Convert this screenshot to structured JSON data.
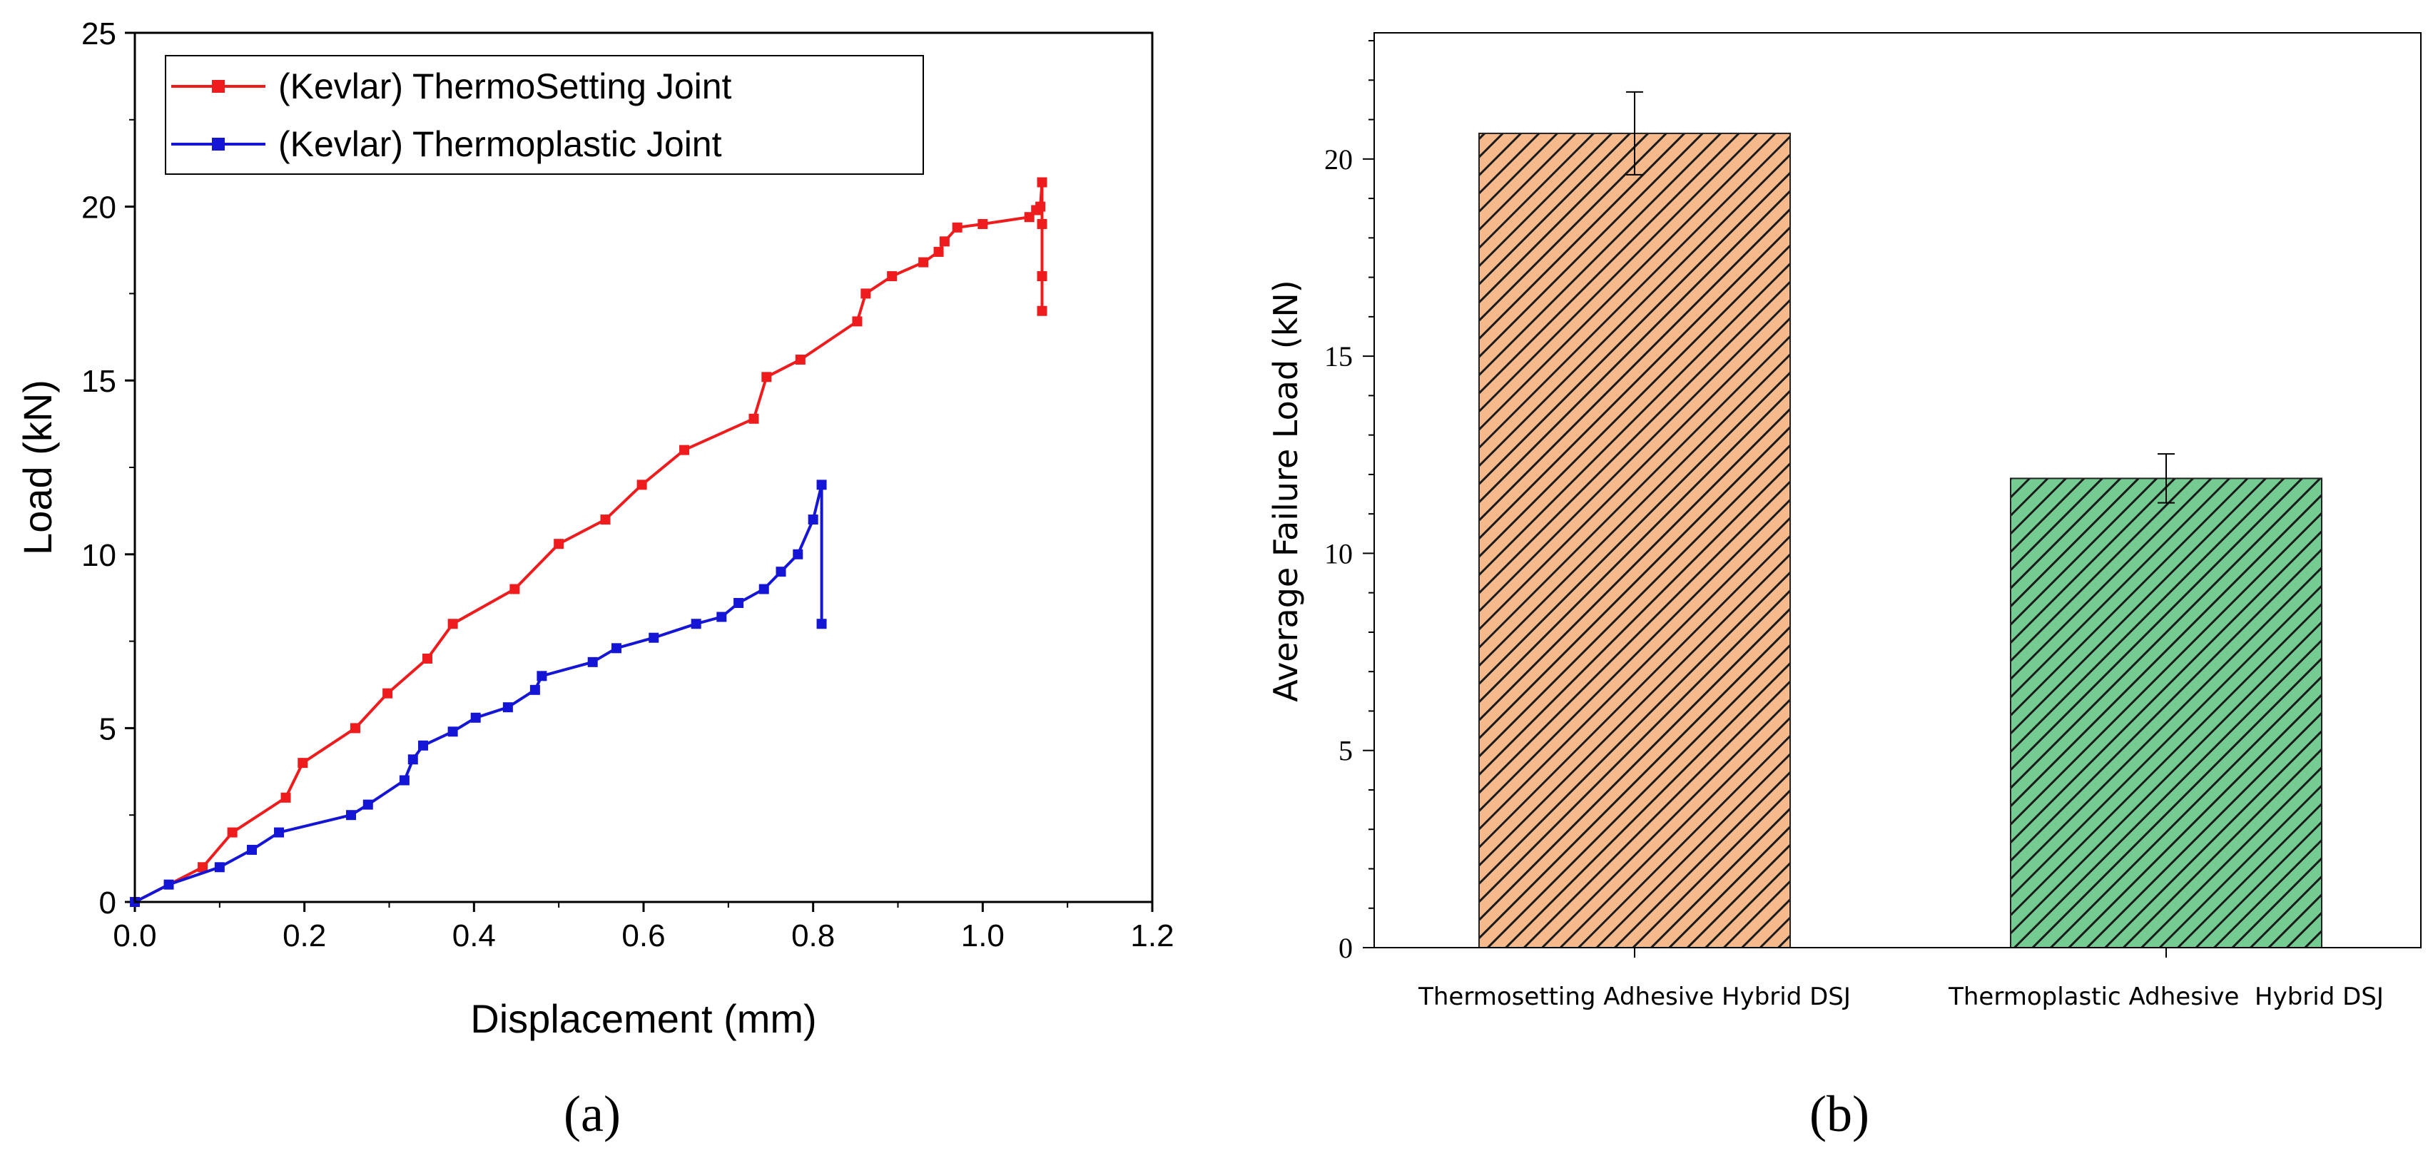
{
  "figure": {
    "panel_a_caption": "(a)",
    "panel_b_caption": "(b)"
  },
  "colors": {
    "thermosetting_line": "#ee1c1c",
    "thermoplastic_line": "#1515d6",
    "bar_thermosetting": "#f6b98c",
    "bar_thermoplastic": "#74cc92",
    "axis": "#000000"
  },
  "chart_data": [
    {
      "type": "line",
      "xlabel": "Displacement (mm)",
      "ylabel": "Load (kN)",
      "xlim": [
        0,
        1.2
      ],
      "ylim": [
        0,
        25
      ],
      "xticks": [
        0.0,
        0.2,
        0.4,
        0.6,
        0.8,
        1.0,
        1.2
      ],
      "xtick_labels": [
        "0.0",
        "0.2",
        "0.4",
        "0.6",
        "0.8",
        "1.0",
        "1.2"
      ],
      "yticks": [
        0,
        5,
        10,
        15,
        20,
        25
      ],
      "ytick_labels": [
        "0",
        "5",
        "10",
        "15",
        "20",
        "25"
      ],
      "legend_position": "top-left",
      "series": [
        {
          "name": "(Kevlar) ThermoSetting Joint",
          "color": "#ee1c1c",
          "x": [
            0.0,
            0.08,
            0.115,
            0.178,
            0.198,
            0.26,
            0.298,
            0.345,
            0.375,
            0.448,
            0.5,
            0.555,
            0.598,
            0.648,
            0.73,
            0.745,
            0.785,
            0.852,
            0.862,
            0.893,
            0.93,
            0.948,
            0.955,
            0.97,
            1.0,
            1.055,
            1.063,
            1.068,
            1.07,
            1.07,
            1.07,
            1.07
          ],
          "y": [
            0.0,
            1.0,
            2.0,
            3.0,
            4.0,
            5.0,
            6.0,
            7.0,
            8.0,
            9.0,
            10.3,
            11.0,
            12.0,
            13.0,
            13.9,
            15.1,
            15.6,
            16.7,
            17.5,
            18.0,
            18.4,
            18.7,
            19.0,
            19.4,
            19.5,
            19.7,
            19.9,
            20.0,
            20.7,
            19.5,
            18.0,
            17.0
          ]
        },
        {
          "name": "(Kevlar) Thermoplastic Joint",
          "color": "#1515d6",
          "x": [
            0.0,
            0.04,
            0.1,
            0.138,
            0.17,
            0.255,
            0.275,
            0.318,
            0.328,
            0.34,
            0.375,
            0.402,
            0.44,
            0.472,
            0.48,
            0.54,
            0.568,
            0.612,
            0.662,
            0.692,
            0.712,
            0.742,
            0.762,
            0.782,
            0.8,
            0.81,
            0.81
          ],
          "y": [
            0.0,
            0.5,
            1.0,
            1.5,
            2.0,
            2.5,
            2.8,
            3.5,
            4.1,
            4.5,
            4.9,
            5.3,
            5.6,
            6.1,
            6.5,
            6.9,
            7.3,
            7.6,
            8.0,
            8.2,
            8.6,
            9.0,
            9.5,
            10.0,
            11.0,
            12.0,
            8.0
          ]
        }
      ]
    },
    {
      "type": "bar",
      "title": "",
      "xlabel": "",
      "ylabel": "Average Failure Load (kN)",
      "ylim": [
        0,
        23.2
      ],
      "yticks": [
        0,
        5,
        10,
        15,
        20
      ],
      "ytick_labels": [
        "0",
        "5",
        "10",
        "15",
        "20"
      ],
      "categories": [
        "Thermosetting Adhesive Hybrid DSJ",
        "Thermoplastic Adhesive  Hybrid DSJ"
      ],
      "values": [
        20.65,
        11.9
      ],
      "errors": [
        1.05,
        0.62
      ],
      "colors": [
        "#f6b98c",
        "#74cc92"
      ],
      "pattern": "diagonal-hatch"
    }
  ]
}
